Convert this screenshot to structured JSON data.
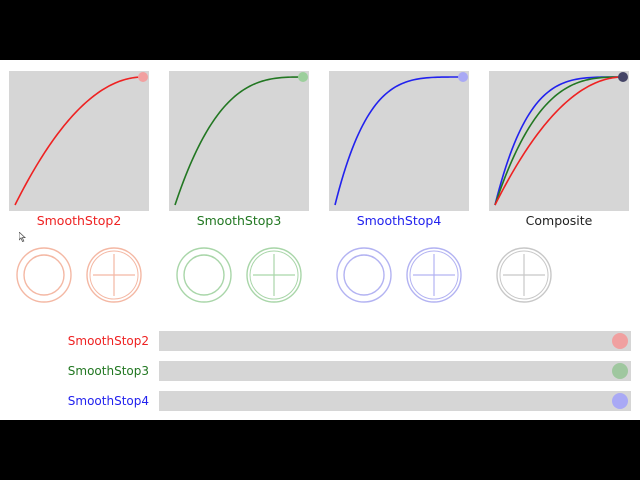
{
  "colors": {
    "stop2": "#ee2222",
    "stop3": "#227722",
    "stop4": "#2222ee",
    "composite": "#222222",
    "panel": "#d6d6d6"
  },
  "graphs": [
    {
      "id": "stop2",
      "title": "SmoothStop2",
      "power": 2,
      "color": "#ee2222",
      "dot": "#f2a0a0"
    },
    {
      "id": "stop3",
      "title": "SmoothStop3",
      "power": 3,
      "color": "#227722",
      "dot": "#9ccf9c"
    },
    {
      "id": "stop4",
      "title": "SmoothStop4",
      "power": 4,
      "color": "#2222ee",
      "dot": "#a9a9f5"
    },
    {
      "id": "composite",
      "title": "Composite",
      "powers": [
        2,
        3,
        4
      ],
      "color": "#222222",
      "dot": "#444466"
    }
  ],
  "indicators": [
    {
      "kind": "ring-icon",
      "color": "#f4b8a4"
    },
    {
      "kind": "crosshair-icon",
      "color": "#f4b8a4"
    },
    {
      "kind": "ring-icon",
      "color": "#a9d6a9"
    },
    {
      "kind": "crosshair-icon",
      "color": "#a9d6a9"
    },
    {
      "kind": "ring-icon",
      "color": "#b3b3f2"
    },
    {
      "kind": "crosshair-icon",
      "color": "#b3b3f2"
    },
    {
      "kind": "crosshair-icon",
      "color": "#c8c8c8"
    }
  ],
  "sliders": [
    {
      "label": "SmoothStop2",
      "color": "#ee2222",
      "knob": "#f0a0a0",
      "progress": 1.0
    },
    {
      "label": "SmoothStop3",
      "color": "#227722",
      "knob": "#9fc79f",
      "progress": 1.0
    },
    {
      "label": "SmoothStop4",
      "color": "#2222ee",
      "knob": "#a9a9f5",
      "progress": 1.0
    }
  ]
}
